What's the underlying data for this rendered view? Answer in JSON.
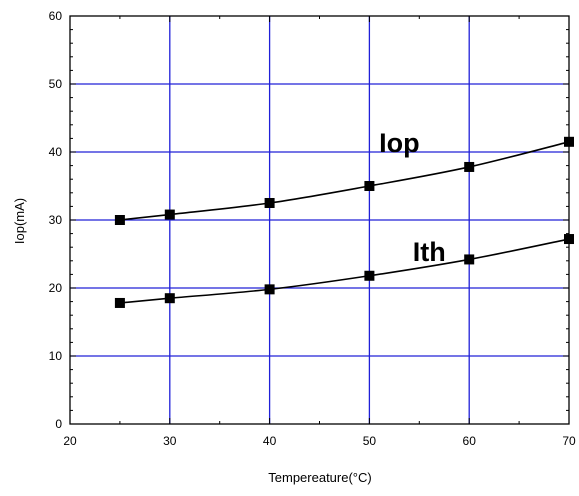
{
  "chart_data": {
    "type": "line",
    "title": "",
    "xlabel": "Tempereature(°C)",
    "ylabel": "Iop(mA)",
    "xlim": [
      20,
      70
    ],
    "ylim": [
      0,
      60
    ],
    "x_ticks": [
      20,
      30,
      40,
      50,
      60,
      70
    ],
    "y_ticks": [
      0,
      10,
      20,
      30,
      40,
      50,
      60
    ],
    "grid": true,
    "grid_color": "#2020d8",
    "line_color": "#000000",
    "marker": "square",
    "legend": "none",
    "annotations": [
      {
        "text": "Iop",
        "x": 53,
        "y": 40
      },
      {
        "text": "Ith",
        "x": 56,
        "y": 24
      }
    ],
    "series": [
      {
        "name": "Iop",
        "x": [
          25,
          30,
          40,
          50,
          60,
          70
        ],
        "y": [
          30,
          30.8,
          32.5,
          35,
          37.8,
          41.5
        ]
      },
      {
        "name": "Ith",
        "x": [
          25,
          30,
          40,
          50,
          60,
          70
        ],
        "y": [
          17.8,
          18.5,
          19.8,
          21.8,
          24.2,
          27.2
        ]
      }
    ]
  }
}
